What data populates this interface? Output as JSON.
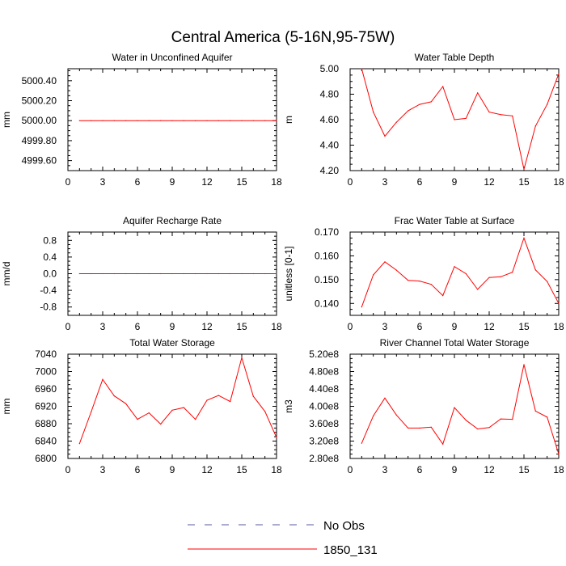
{
  "title": "Central America (5-16N,95-75W)",
  "colors": {
    "sim": "#ff0000",
    "obs": "#5a5aa0",
    "axis": "#000000",
    "background": "#ffffff"
  },
  "legend": {
    "placement": "bottom-center",
    "entries": [
      {
        "label": "No Obs",
        "style": "dashed",
        "color": "#5a5aa0"
      },
      {
        "label": "1850_131",
        "style": "solid",
        "color": "#ff0000"
      }
    ]
  },
  "chart_data": [
    {
      "type": "line",
      "title": "Water in Unconfined Aquifer",
      "ylabel": "mm",
      "xlim": [
        0,
        18
      ],
      "ylim": [
        4999.5,
        5000.52
      ],
      "xticks": [
        0,
        3,
        6,
        9,
        12,
        15,
        18
      ],
      "yticks": [
        4999.6,
        4999.8,
        5000.0,
        5000.2,
        5000.4
      ],
      "ytick_labels": [
        "4999.60",
        "4999.80",
        "5000.00",
        "5000.20",
        "5000.40"
      ],
      "x": [
        1,
        2,
        3,
        4,
        5,
        6,
        7,
        8,
        9,
        10,
        11,
        12,
        13,
        14,
        15,
        16,
        17,
        18
      ],
      "series": [
        {
          "name": "1850_131",
          "values": [
            5000,
            5000,
            5000,
            5000,
            5000,
            5000,
            5000,
            5000,
            5000,
            5000,
            5000,
            5000,
            5000,
            5000,
            5000,
            5000,
            5000,
            5000
          ]
        }
      ]
    },
    {
      "type": "line",
      "title": "Water Table Depth",
      "ylabel": "m",
      "xlim": [
        0,
        18
      ],
      "ylim": [
        4.2,
        5.0
      ],
      "xticks": [
        0,
        3,
        6,
        9,
        12,
        15,
        18
      ],
      "yticks": [
        4.2,
        4.4,
        4.6,
        4.8,
        5.0
      ],
      "ytick_labels": [
        "4.20",
        "4.40",
        "4.60",
        "4.80",
        "5.00"
      ],
      "x": [
        1,
        2,
        3,
        4,
        5,
        6,
        7,
        8,
        9,
        10,
        11,
        12,
        13,
        14,
        15,
        16,
        17,
        18
      ],
      "series": [
        {
          "name": "1850_131",
          "values": [
            5.0,
            4.66,
            4.47,
            4.58,
            4.67,
            4.72,
            4.74,
            4.86,
            4.6,
            4.61,
            4.81,
            4.66,
            4.64,
            4.63,
            4.21,
            4.55,
            4.72,
            4.96
          ]
        }
      ]
    },
    {
      "type": "line",
      "title": "Aquifer Recharge Rate",
      "ylabel": "mm/d",
      "xlim": [
        0,
        18
      ],
      "ylim": [
        -1.0,
        1.0
      ],
      "xticks": [
        0,
        3,
        6,
        9,
        12,
        15,
        18
      ],
      "yticks": [
        -0.8,
        -0.4,
        0.0,
        0.4,
        0.8
      ],
      "ytick_labels": [
        "-0.8",
        "-0.4",
        "0.0",
        "0.4",
        "0.8"
      ],
      "x": [
        1,
        2,
        3,
        4,
        5,
        6,
        7,
        8,
        9,
        10,
        11,
        12,
        13,
        14,
        15,
        16,
        17,
        18
      ],
      "series": [
        {
          "name": "1850_131",
          "values": [
            0,
            0,
            0,
            0,
            0,
            0,
            0,
            0,
            0,
            0,
            0,
            0,
            0,
            0,
            0,
            0,
            0,
            0
          ]
        }
      ]
    },
    {
      "type": "line",
      "title": "Frac Water Table at Surface",
      "ylabel": "unitless [0-1]",
      "xlim": [
        0,
        18
      ],
      "ylim": [
        0.135,
        0.17
      ],
      "xticks": [
        0,
        3,
        6,
        9,
        12,
        15,
        18
      ],
      "yticks": [
        0.14,
        0.15,
        0.16,
        0.17
      ],
      "ytick_labels": [
        "0.140",
        "0.150",
        "0.160",
        "0.170"
      ],
      "x": [
        1,
        2,
        3,
        4,
        5,
        6,
        7,
        8,
        9,
        10,
        11,
        12,
        13,
        14,
        15,
        16,
        17,
        18
      ],
      "series": [
        {
          "name": "1850_131",
          "values": [
            0.1385,
            0.152,
            0.1575,
            0.154,
            0.1497,
            0.1494,
            0.148,
            0.1433,
            0.1555,
            0.1525,
            0.1459,
            0.1509,
            0.1512,
            0.1531,
            0.1675,
            0.1541,
            0.1492,
            0.14
          ]
        }
      ]
    },
    {
      "type": "line",
      "title": "Total Water Storage",
      "ylabel": "mm",
      "xlim": [
        0,
        18
      ],
      "ylim": [
        6800,
        7040
      ],
      "xticks": [
        0,
        3,
        6,
        9,
        12,
        15,
        18
      ],
      "yticks": [
        6800,
        6840,
        6880,
        6920,
        6960,
        7000,
        7040
      ],
      "ytick_labels": [
        "6800",
        "6840",
        "6880",
        "6920",
        "6960",
        "7000",
        "7040"
      ],
      "x": [
        1,
        2,
        3,
        4,
        5,
        6,
        7,
        8,
        9,
        10,
        11,
        12,
        13,
        14,
        15,
        16,
        17,
        18
      ],
      "series": [
        {
          "name": "1850_131",
          "values": [
            6834,
            6907,
            6982,
            6944,
            6926,
            6890,
            6905,
            6879,
            6911,
            6917,
            6890,
            6934,
            6945,
            6931,
            7032,
            6943,
            6908,
            6848
          ]
        }
      ]
    },
    {
      "type": "line",
      "title": "River Channel Total Water Storage",
      "ylabel": "m3",
      "xlim": [
        0,
        18
      ],
      "ylim": [
        280000000,
        520000000
      ],
      "xticks": [
        0,
        3,
        6,
        9,
        12,
        15,
        18
      ],
      "yticks": [
        280000000,
        320000000,
        360000000,
        400000000,
        440000000,
        480000000,
        520000000
      ],
      "ytick_labels": [
        "2.80e8",
        "3.20e8",
        "3.60e8",
        "4.00e8",
        "4.40e8",
        "4.80e8",
        "5.20e8"
      ],
      "x": [
        1,
        2,
        3,
        4,
        5,
        6,
        7,
        8,
        9,
        10,
        11,
        12,
        13,
        14,
        15,
        16,
        17,
        18
      ],
      "series": [
        {
          "name": "1850_131",
          "values": [
            315000000,
            378000000,
            419000000,
            380000000,
            350000000,
            350000000,
            352000000,
            313000000,
            397000000,
            368000000,
            348000000,
            351000000,
            371000000,
            370000000,
            496000000,
            389000000,
            375000000,
            290000000
          ]
        }
      ]
    }
  ]
}
